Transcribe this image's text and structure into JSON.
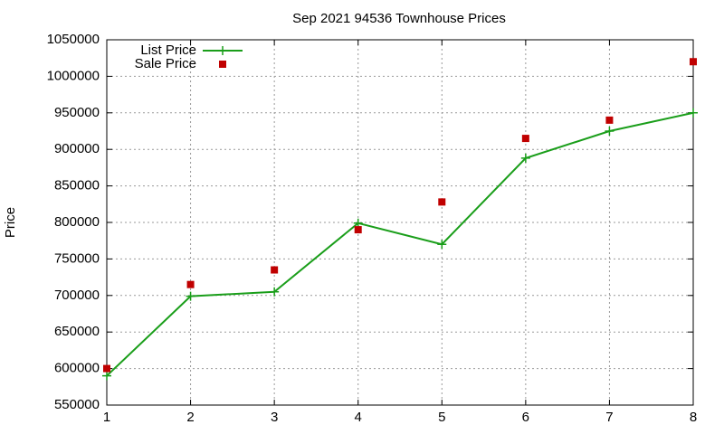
{
  "chart_data": {
    "type": "line",
    "title": "Sep 2021 94536 Townhouse Prices",
    "y_label": "Price",
    "x": [
      1,
      2,
      3,
      4,
      5,
      6,
      7,
      8
    ],
    "series": [
      {
        "name": "List Price",
        "color": "#1a9e1a",
        "style": "linespoints",
        "values": [
          590000,
          699000,
          705000,
          799000,
          770000,
          888000,
          925000,
          950000
        ]
      },
      {
        "name": "Sale Price",
        "color": "#c00000",
        "style": "points",
        "values": [
          600000,
          715000,
          735000,
          790000,
          828000,
          915000,
          940000,
          1020000
        ]
      }
    ],
    "xlim": [
      1,
      8
    ],
    "xticks": [
      1,
      2,
      3,
      4,
      5,
      6,
      7,
      8
    ],
    "ylim": [
      550000,
      1050000
    ],
    "yticks": [
      550000,
      600000,
      650000,
      700000,
      750000,
      800000,
      850000,
      900000,
      950000,
      1000000,
      1050000
    ],
    "grid": true,
    "legend": "top-left"
  }
}
